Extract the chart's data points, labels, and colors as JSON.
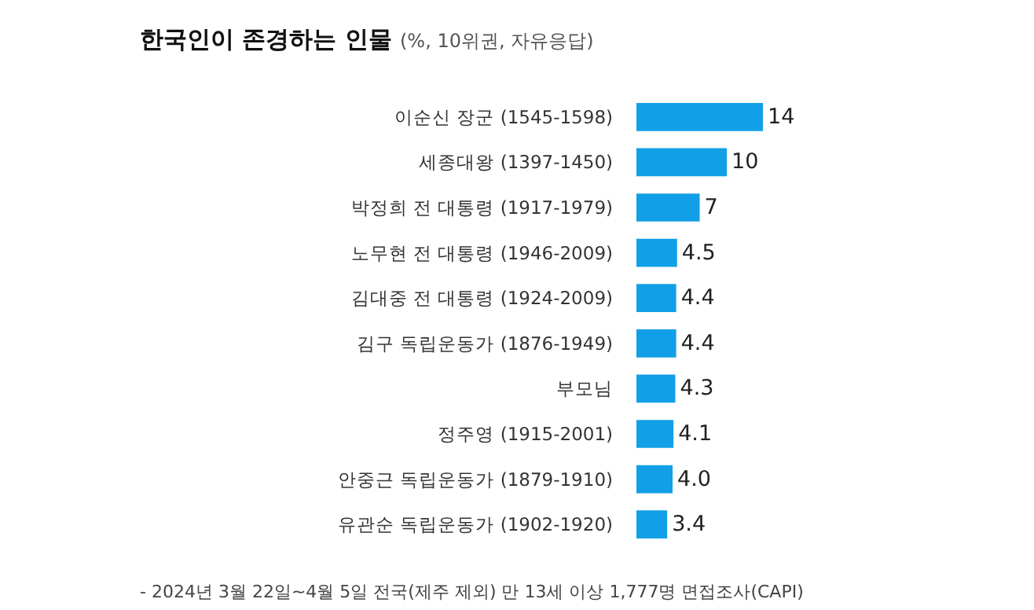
{
  "chart_data": {
    "type": "bar",
    "orientation": "horizontal",
    "title": "한국인이 존경하는 인물",
    "subtitle": "(%, 10위권, 자유응답)",
    "categories": [
      "이순신 장군 (1545-1598)",
      "세종대왕 (1397-1450)",
      "박정희 전 대통령 (1917-1979)",
      "노무현 전 대통령 (1946-2009)",
      "김대중 전 대통령 (1924-2009)",
      "김구 독립운동가 (1876-1949)",
      "부모님",
      "정주영 (1915-2001)",
      "안중근 독립운동가 (1879-1910)",
      "유관순 독립운동가 (1902-1920)"
    ],
    "values": [
      14,
      10,
      7,
      4.5,
      4.4,
      4.4,
      4.3,
      4.1,
      4.0,
      3.4
    ],
    "value_labels": [
      "14",
      "10",
      "7",
      "4.5",
      "4.4",
      "4.4",
      "4.3",
      "4.1",
      "4.0",
      "3.4"
    ],
    "color": "#119fe8",
    "annotations": [
      "- 2024년 3월 22일~4월 5일 전국(제주 제외) 만 13세 이상 1,777명 면접조사(CAPI)"
    ],
    "legend": false
  }
}
